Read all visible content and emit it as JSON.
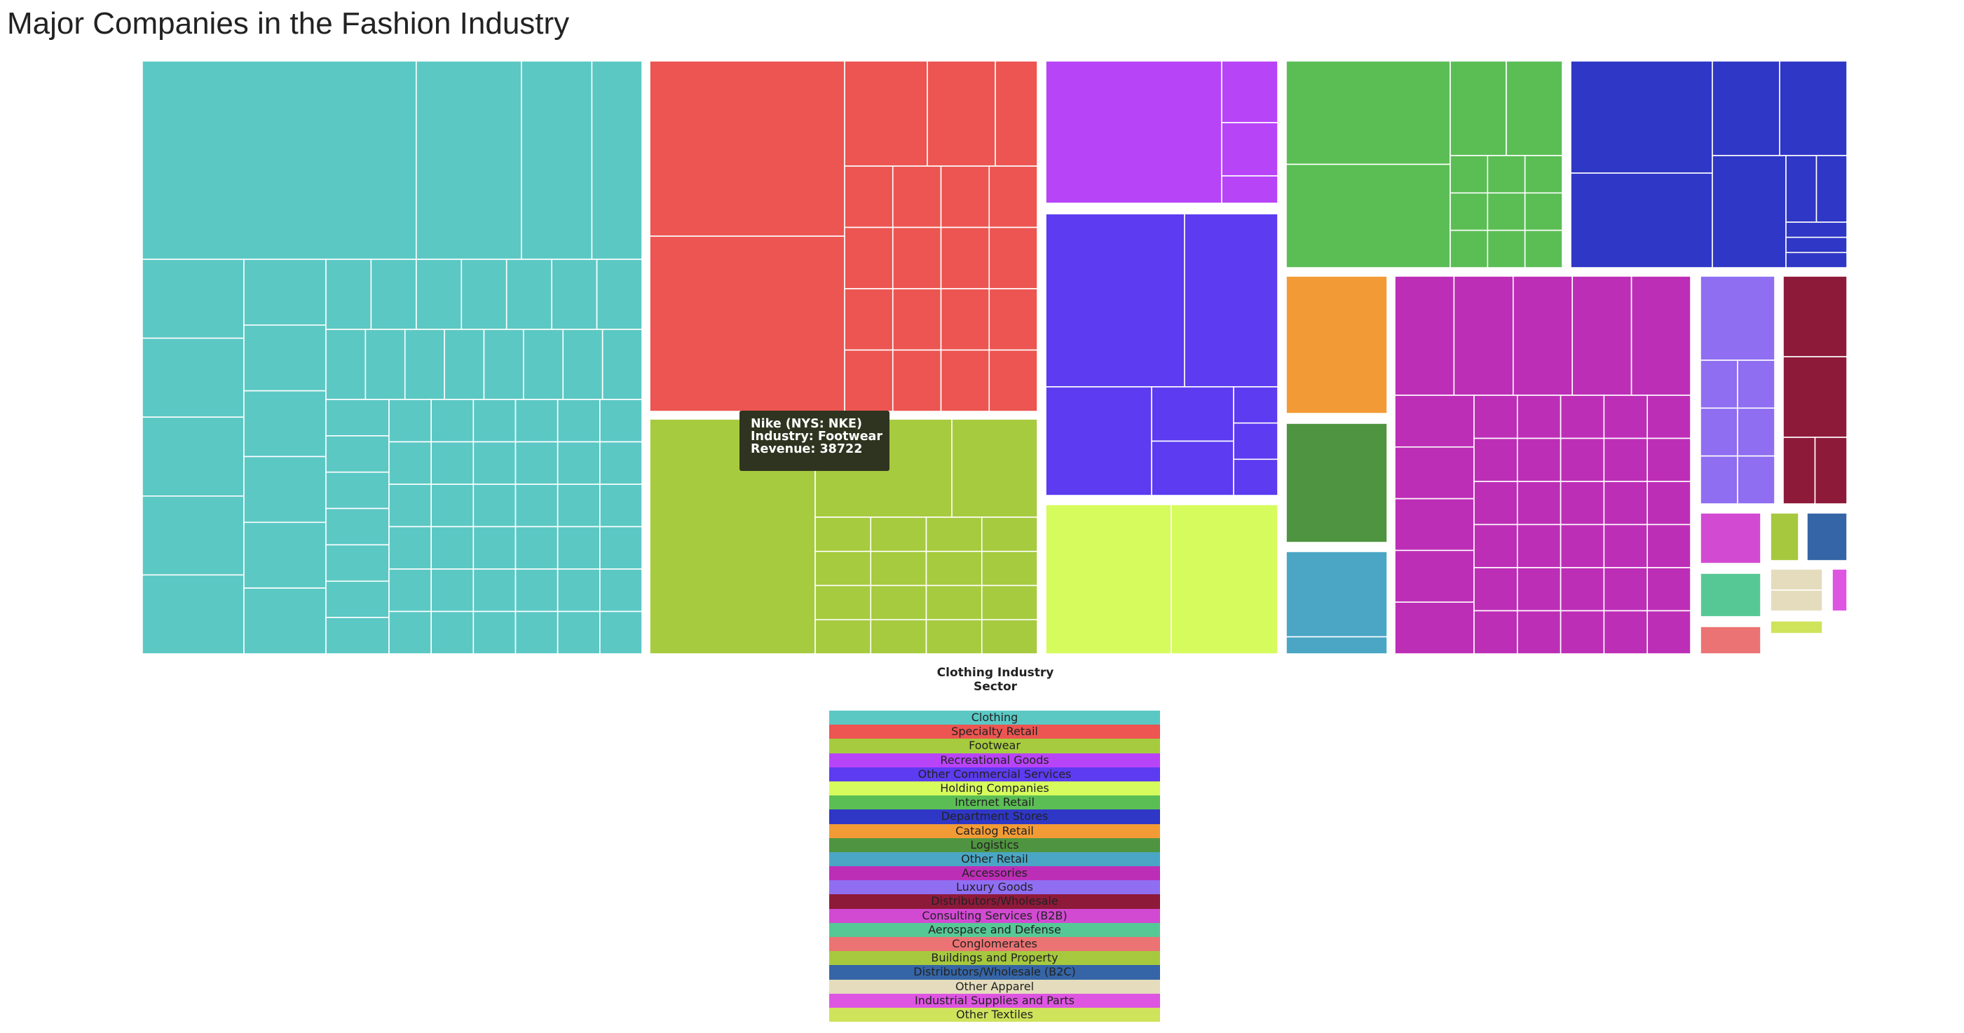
{
  "title": "Major Companies in the Fashion Industry",
  "tooltip": {
    "line1": "Nike (NYS: NKE)",
    "line2": "Industry: Footwear",
    "line3": "Revenue: 38722"
  },
  "chart_data": {
    "type": "treemap",
    "title": "Major Companies in the Fashion Industry",
    "xlabel": "Clothing Industry Sector",
    "legend_position": "bottom-center",
    "categories": [
      {
        "name": "Clothing",
        "color": "#5bc8c4"
      },
      {
        "name": "Specialty Retail",
        "color": "#ec5551"
      },
      {
        "name": "Footwear",
        "color": "#a6cb3e"
      },
      {
        "name": "Recreational Goods",
        "color": "#b844f8"
      },
      {
        "name": "Other Commercial Services",
        "color": "#5c3bf1"
      },
      {
        "name": "Holding Companies",
        "color": "#d6fb5c"
      },
      {
        "name": "Internet Retail",
        "color": "#5bbe55"
      },
      {
        "name": "Department Stores",
        "color": "#2f37c6"
      },
      {
        "name": "Catalog Retail",
        "color": "#f29b36"
      },
      {
        "name": "Logistics",
        "color": "#4f9440"
      },
      {
        "name": "Other Retail",
        "color": "#4aa6c4"
      },
      {
        "name": "Accessories",
        "color": "#bd2eb7"
      },
      {
        "name": "Luxury Goods",
        "color": "#8f6ef2"
      },
      {
        "name": "Distributors/Wholesale",
        "color": "#8e1a3a"
      },
      {
        "name": "Consulting Services (B2B)",
        "color": "#d24ad2"
      },
      {
        "name": "Aerospace and Defense",
        "color": "#56c896"
      },
      {
        "name": "Conglomerates",
        "color": "#ec7373"
      },
      {
        "name": "Buildings and Property",
        "color": "#a6c83e"
      },
      {
        "name": "Distributors/Wholesale (B2C)",
        "color": "#3565a6"
      },
      {
        "name": "Other Apparel",
        "color": "#e4dcbc"
      },
      {
        "name": "Industrial Supplies and Parts",
        "color": "#de55e2"
      },
      {
        "name": "Other Textiles",
        "color": "#cfe35b"
      }
    ],
    "highlighted_company": {
      "name": "Nike (NYS: NKE)",
      "industry": "Footwear",
      "revenue": 38722
    }
  }
}
